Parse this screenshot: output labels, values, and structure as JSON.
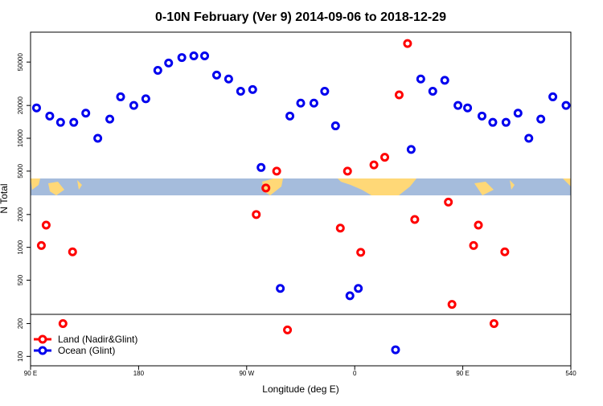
{
  "chart_data": {
    "type": "scatter",
    "title": "0-10N February (Ver 9)   2014-09-06 to 2018-12-29",
    "x_label": "Longitude (deg E)",
    "y_label": "N Total",
    "log_y": true,
    "legend": "bottom-left",
    "xlim": [
      90,
      540
    ],
    "xticks": [
      {
        "value": 90,
        "label": "90 E"
      },
      180,
      {
        "value": 270,
        "label": "90 W"
      },
      {
        "value": 360,
        "label": "0"
      },
      {
        "value": 450,
        "label": "90 E"
      },
      540
    ],
    "ylim": [
      82,
      94000
    ],
    "yticks": [
      100,
      200,
      500,
      1000,
      2000,
      5000,
      10000,
      20000,
      50000
    ],
    "series": [
      {
        "name": "Land (Nadir&Glint)",
        "color": "#ff0000",
        "x": [
          99,
          103,
          117,
          125,
          278,
          286,
          295,
          304,
          348,
          354,
          365,
          376,
          385,
          397,
          404,
          410,
          438,
          441,
          459,
          463,
          476,
          485
        ],
        "values": [
          1040,
          1600,
          200,
          910,
          2000,
          3500,
          5000,
          175,
          1500,
          5000,
          900,
          5700,
          6700,
          25000,
          74000,
          1800,
          2600,
          300,
          1040,
          1600,
          200,
          910
        ]
      },
      {
        "name": "Ocean (Glint)",
        "color": "#0000ee",
        "x": [
          95,
          106,
          115,
          126,
          136,
          146,
          156,
          165,
          176,
          186,
          196,
          205,
          216,
          226,
          235,
          245,
          255,
          265,
          275,
          282,
          298,
          306,
          315,
          326,
          335,
          344,
          356,
          363,
          394,
          407,
          415,
          425,
          435,
          446,
          454,
          466,
          475,
          486,
          496,
          505,
          515,
          525,
          536
        ],
        "values": [
          19000,
          16000,
          14000,
          14000,
          17000,
          10000,
          15000,
          24000,
          20000,
          23000,
          42000,
          49000,
          55000,
          57000,
          57000,
          38000,
          35000,
          27000,
          28000,
          5400,
          420,
          16000,
          21000,
          21000,
          27000,
          13000,
          360,
          420,
          115,
          7900,
          35000,
          27000,
          34000,
          20000,
          19000,
          16000,
          14000,
          14000,
          17000,
          10000,
          15000,
          24000,
          20000
        ]
      }
    ]
  }
}
